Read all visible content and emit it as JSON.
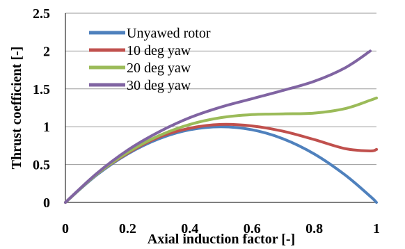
{
  "chart_data": {
    "type": "line",
    "title": "",
    "xlabel": "Axial induction factor [-]",
    "ylabel": "Thrust coefficient [-]",
    "xlim": [
      0,
      1
    ],
    "ylim": [
      0,
      2.5
    ],
    "xticks": [
      "0",
      "0.2",
      "0.4",
      "0.6",
      "0.8",
      "1"
    ],
    "yticks": [
      "0",
      "0.5",
      "1",
      "1.5",
      "2",
      "2.5"
    ],
    "grid": "horizontal",
    "legend_position": "top-left",
    "x": [
      0,
      0.1,
      0.2,
      0.3,
      0.4,
      0.5,
      0.6,
      0.7,
      0.8,
      0.9,
      0.98,
      1.0
    ],
    "series": [
      {
        "name": "Unyawed rotor",
        "color": "#4f81bd",
        "values": [
          0.0,
          0.36,
          0.64,
          0.84,
          0.96,
          1.0,
          0.96,
          0.84,
          0.64,
          0.36,
          0.08,
          0.0
        ]
      },
      {
        "name": "10 deg yaw",
        "color": "#c0504d",
        "values": [
          0.0,
          0.37,
          0.65,
          0.86,
          0.98,
          1.03,
          1.01,
          0.94,
          0.83,
          0.71,
          0.68,
          0.7
        ]
      },
      {
        "name": "20 deg yaw",
        "color": "#9bbb59",
        "values": [
          0.0,
          0.37,
          0.66,
          0.88,
          1.03,
          1.12,
          1.16,
          1.17,
          1.18,
          1.24,
          1.35,
          1.38
        ]
      },
      {
        "name": "30 deg yaw",
        "color": "#8064a2",
        "values": [
          0.0,
          0.38,
          0.69,
          0.93,
          1.12,
          1.26,
          1.37,
          1.48,
          1.6,
          1.78,
          2.0,
          null
        ]
      }
    ]
  }
}
